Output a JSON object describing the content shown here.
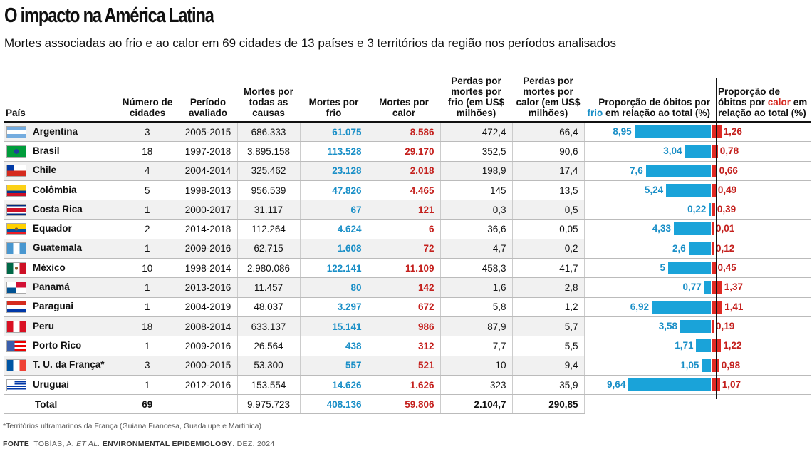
{
  "title": "O impacto na América Latina",
  "subtitle": "Mortes associadas ao frio e ao calor em 69 cidades de 13 países e 3 territórios da região nos períodos analisados",
  "headers": {
    "pais": "País",
    "cidades": "Número de cidades",
    "periodo": "Período avaliado",
    "todas": "Mortes por todas as causas",
    "frio": "Mortes por frio",
    "calor": "Mortes por calor",
    "perdas_frio": "Perdas por mortes por frio (em US$ milhões)",
    "perdas_calor": "Perdas por mortes por calor (em US$ milhões)",
    "prop_frio_pre": "Proporção de óbitos por ",
    "prop_frio_word": "frio",
    "prop_frio_post": " em relação ao total (%)",
    "prop_calor_pre": "Proporção de óbitos por ",
    "prop_calor_word": "calor",
    "prop_calor_post": " em relação ao total (%)"
  },
  "colors": {
    "cold": "#1aa3d9",
    "heat": "#e02a24"
  },
  "rows": [
    {
      "pais": "Argentina",
      "flag": "argentina-flag",
      "cidades": "3",
      "periodo": "2005-2015",
      "todas": "686.333",
      "frio": "61.075",
      "calor": "8.586",
      "perdas_frio": "472,4",
      "perdas_calor": "66,4",
      "prop_frio": "8,95",
      "prop_calor": "1,26"
    },
    {
      "pais": "Brasil",
      "flag": "brasil-flag",
      "cidades": "18",
      "periodo": "1997-2018",
      "todas": "3.895.158",
      "frio": "113.528",
      "calor": "29.170",
      "perdas_frio": "352,5",
      "perdas_calor": "90,6",
      "prop_frio": "3,04",
      "prop_calor": "0,78"
    },
    {
      "pais": "Chile",
      "flag": "chile-flag",
      "cidades": "4",
      "periodo": "2004-2014",
      "todas": "325.462",
      "frio": "23.128",
      "calor": "2.018",
      "perdas_frio": "198,9",
      "perdas_calor": "17,4",
      "prop_frio": "7,6",
      "prop_calor": "0,66"
    },
    {
      "pais": "Colômbia",
      "flag": "colombia-flag",
      "cidades": "5",
      "periodo": "1998-2013",
      "todas": "956.539",
      "frio": "47.826",
      "calor": "4.465",
      "perdas_frio": "145",
      "perdas_calor": "13,5",
      "prop_frio": "5,24",
      "prop_calor": "0,49"
    },
    {
      "pais": "Costa Rica",
      "flag": "costa-rica-flag",
      "cidades": "1",
      "periodo": "2000-2017",
      "todas": "31.117",
      "frio": "67",
      "calor": "121",
      "perdas_frio": "0,3",
      "perdas_calor": "0,5",
      "prop_frio": "0,22",
      "prop_calor": "0,39"
    },
    {
      "pais": "Equador",
      "flag": "equador-flag",
      "cidades": "2",
      "periodo": "2014-2018",
      "todas": "112.264",
      "frio": "4.624",
      "calor": "6",
      "perdas_frio": "36,6",
      "perdas_calor": "0,05",
      "prop_frio": "4,33",
      "prop_calor": "0,01"
    },
    {
      "pais": "Guatemala",
      "flag": "guatemala-flag",
      "cidades": "1",
      "periodo": "2009-2016",
      "todas": "62.715",
      "frio": "1.608",
      "calor": "72",
      "perdas_frio": "4,7",
      "perdas_calor": "0,2",
      "prop_frio": "2,6",
      "prop_calor": "0,12"
    },
    {
      "pais": "México",
      "flag": "mexico-flag",
      "cidades": "10",
      "periodo": "1998-2014",
      "todas": "2.980.086",
      "frio": "122.141",
      "calor": "11.109",
      "perdas_frio": "458,3",
      "perdas_calor": "41,7",
      "prop_frio": "5",
      "prop_calor": "0,45"
    },
    {
      "pais": "Panamá",
      "flag": "panama-flag",
      "cidades": "1",
      "periodo": "2013-2016",
      "todas": "11.457",
      "frio": "80",
      "calor": "142",
      "perdas_frio": "1,6",
      "perdas_calor": "2,8",
      "prop_frio": "0,77",
      "prop_calor": "1,37"
    },
    {
      "pais": "Paraguai",
      "flag": "paraguai-flag",
      "cidades": "1",
      "periodo": "2004-2019",
      "todas": "48.037",
      "frio": "3.297",
      "calor": "672",
      "perdas_frio": "5,8",
      "perdas_calor": "1,2",
      "prop_frio": "6,92",
      "prop_calor": "1,41"
    },
    {
      "pais": "Peru",
      "flag": "peru-flag",
      "cidades": "18",
      "periodo": "2008-2014",
      "todas": "633.137",
      "frio": "15.141",
      "calor": "986",
      "perdas_frio": "87,9",
      "perdas_calor": "5,7",
      "prop_frio": "3,58",
      "prop_calor": "0,19"
    },
    {
      "pais": "Porto Rico",
      "flag": "porto-rico-flag",
      "cidades": "1",
      "periodo": "2009-2016",
      "todas": "26.564",
      "frio": "438",
      "calor": "312",
      "perdas_frio": "7,7",
      "perdas_calor": "5,5",
      "prop_frio": "1,71",
      "prop_calor": "1,22"
    },
    {
      "pais": "T. U. da França*",
      "flag": "franca-flag",
      "cidades": "3",
      "periodo": "2000-2015",
      "todas": "53.300",
      "frio": "557",
      "calor": "521",
      "perdas_frio": "10",
      "perdas_calor": "9,4",
      "prop_frio": "1,05",
      "prop_calor": "0,98"
    },
    {
      "pais": "Uruguai",
      "flag": "uruguai-flag",
      "cidades": "1",
      "periodo": "2012-2016",
      "todas": "153.554",
      "frio": "14.626",
      "calor": "1.626",
      "perdas_frio": "323",
      "perdas_calor": "35,9",
      "prop_frio": "9,64",
      "prop_calor": "1,07"
    }
  ],
  "total": {
    "label": "Total",
    "cidades": "69",
    "todas": "9.975.723",
    "frio": "408.136",
    "calor": "59.806",
    "perdas_frio": "2.104,7",
    "perdas_calor": "290,85"
  },
  "chart_data": {
    "type": "bar",
    "categories": [
      "Argentina",
      "Brasil",
      "Chile",
      "Colômbia",
      "Costa Rica",
      "Equador",
      "Guatemala",
      "México",
      "Panamá",
      "Paraguai",
      "Peru",
      "Porto Rico",
      "T. U. da França*",
      "Uruguai"
    ],
    "series": [
      {
        "name": "Proporção de óbitos por frio em relação ao total (%)",
        "values": [
          8.95,
          3.04,
          7.6,
          5.24,
          0.22,
          4.33,
          2.6,
          5,
          0.77,
          6.92,
          3.58,
          1.71,
          1.05,
          9.64
        ]
      },
      {
        "name": "Proporção de óbitos por calor em relação ao total (%)",
        "values": [
          1.26,
          0.78,
          0.66,
          0.49,
          0.39,
          0.01,
          0.12,
          0.45,
          1.37,
          1.41,
          0.19,
          1.22,
          0.98,
          1.07
        ]
      }
    ]
  },
  "footnote": "*Territórios ultramarinos da França (Guiana Francesa, Guadalupe e Martinica)",
  "source": {
    "label": "FONTE",
    "authors_pre": "TOBÍAS, A. ",
    "etal": "ET AL.",
    "journal": " ENVIRONMENTAL EPIDEMIOLOGY",
    "date": ". DEZ. 2024"
  }
}
